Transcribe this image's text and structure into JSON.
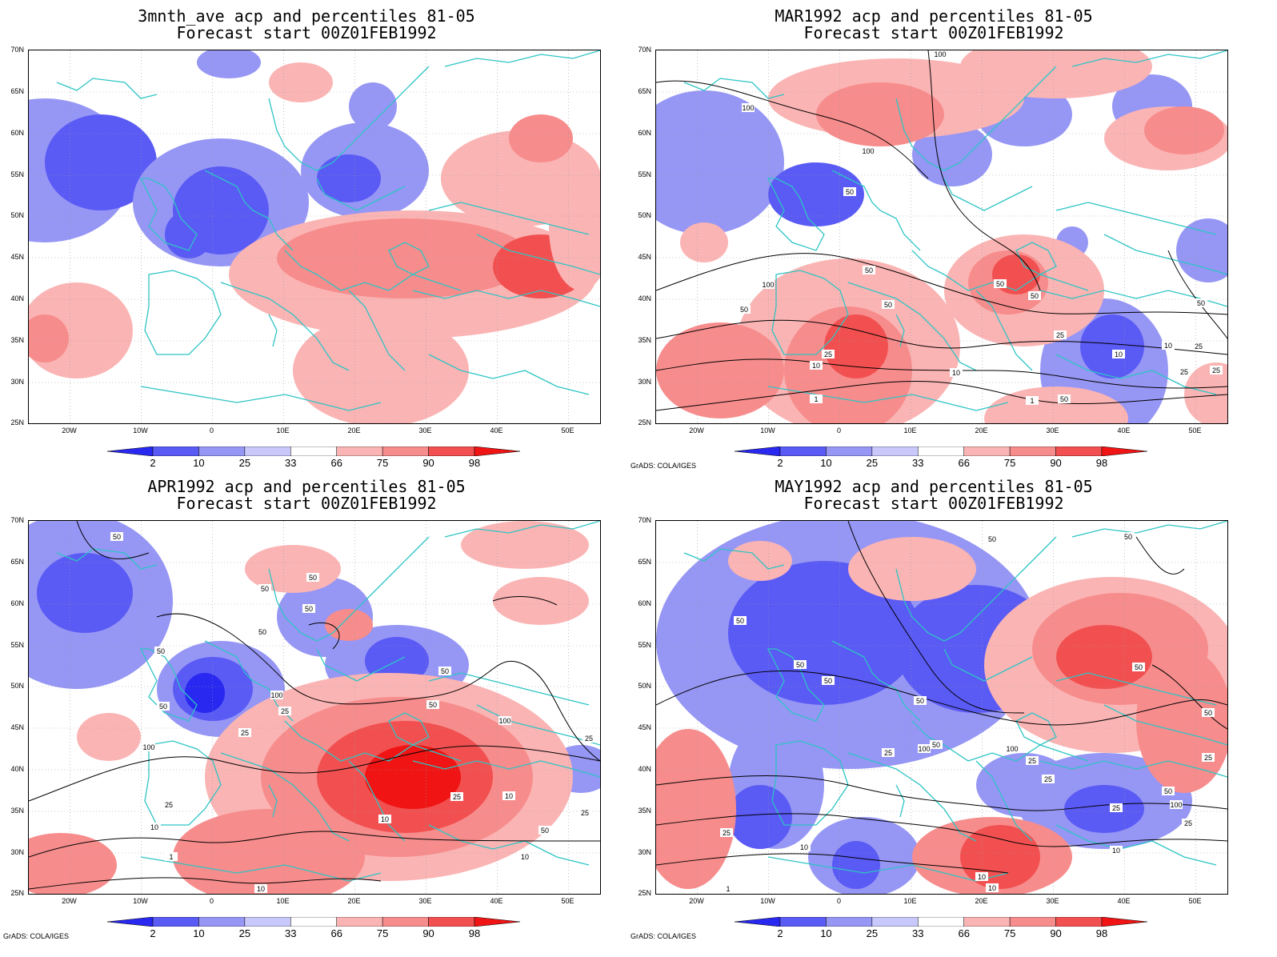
{
  "colors": {
    "deep_blue": "#2828f0",
    "mid_blue": "#5a5af5",
    "light_blue": "#9696f5",
    "pale_blue": "#c8c8fa",
    "pale_red": "#fbb4b4",
    "light_red": "#f78c8c",
    "mid_red": "#f25050",
    "deep_red": "#f01414",
    "coast": "#2ec4c4",
    "contour": "#000000",
    "grid": "#9a9a9a"
  },
  "lat_labels": [
    "70N",
    "65N",
    "60N",
    "55N",
    "50N",
    "45N",
    "40N",
    "35N",
    "30N",
    "25N"
  ],
  "lon_labels": [
    "20W",
    "10W",
    "0",
    "10E",
    "20E",
    "30E",
    "40E",
    "50E"
  ],
  "colorbar_labels": [
    "2",
    "10",
    "25",
    "33",
    "66",
    "75",
    "90",
    "98"
  ],
  "credit": "GrADS: COLA/IGES",
  "panels": [
    {
      "title1": "3mnth_ave acp and percentiles 81-05",
      "title2": "Forecast start 00Z01FEB1992",
      "has_contours": false,
      "has_credit": false
    },
    {
      "title1": "MAR1992 acp and percentiles 81-05",
      "title2": "Forecast start 00Z01FEB1992",
      "has_contours": true,
      "has_credit": true
    },
    {
      "title1": "APR1992 acp and percentiles 81-05",
      "title2": "Forecast start 00Z01FEB1992",
      "has_contours": true,
      "has_credit": true
    },
    {
      "title1": "MAY1992 acp and percentiles 81-05",
      "title2": "Forecast start 00Z01FEB1992",
      "has_contours": true,
      "has_credit": true
    }
  ],
  "contour_labels": {
    "MAR1992": [
      "100",
      "100",
      "100",
      "50",
      "50",
      "50",
      "100",
      "50",
      "50",
      "50",
      "50",
      "25",
      "25",
      "10",
      "10",
      "10",
      "1",
      "1",
      "50",
      "25",
      "25",
      "25",
      "10"
    ],
    "APR1992": [
      "50",
      "50",
      "50",
      "50",
      "50",
      "50",
      "50",
      "100",
      "50",
      "100",
      "50",
      "25",
      "100",
      "25",
      "25",
      "25",
      "10",
      "10",
      "10",
      "1",
      "10",
      "50",
      "25",
      "25",
      "10"
    ],
    "MAY1992": [
      "50",
      "50",
      "50",
      "50",
      "50",
      "100",
      "100",
      "50",
      "50",
      "100",
      "25",
      "25",
      "50",
      "25",
      "25",
      "25",
      "10",
      "10",
      "10",
      "10",
      "1",
      "50",
      "25",
      "50",
      "25"
    ]
  }
}
